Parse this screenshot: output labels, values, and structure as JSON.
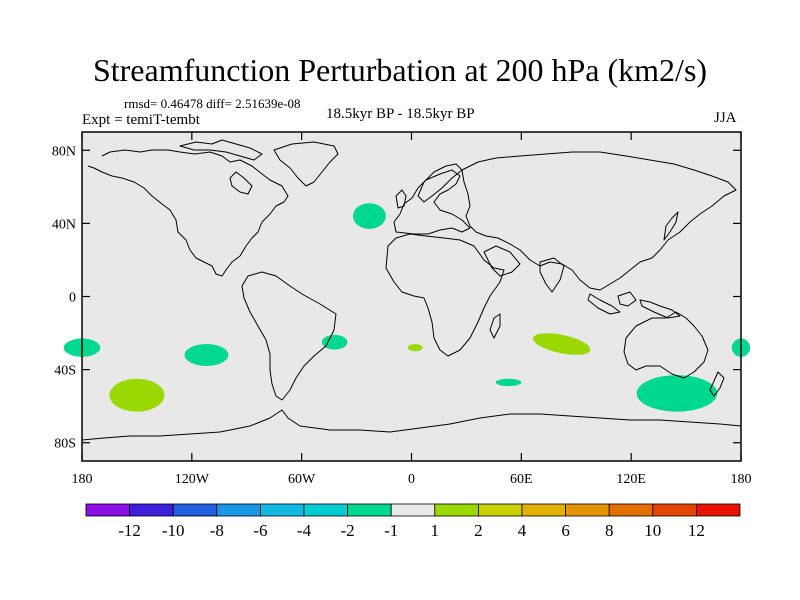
{
  "title": "Streamfunction Perturbation at 200 hPa (km2/s)",
  "stats_text": "rmsd= 0.46478  diff= 2.51639e-08",
  "experiment_label": "Expt = temiT-tembt",
  "period_label": "18.5kyr BP - 18.5kyr BP",
  "season_label": "JJA",
  "map": {
    "projection": "cylindrical equidistant",
    "lon_range": [
      -180,
      180
    ],
    "lat_range": [
      -90,
      90
    ],
    "ocean_land_fill": "#e8e8e8",
    "coastline_color": "#000000",
    "y_ticks": [
      {
        "label": "80N",
        "lat": 80
      },
      {
        "label": "40N",
        "lat": 40
      },
      {
        "label": "0",
        "lat": 0
      },
      {
        "label": "40S",
        "lat": -40
      },
      {
        "label": "80S",
        "lat": -80
      }
    ],
    "x_ticks": [
      {
        "label": "180",
        "lon": -180
      },
      {
        "label": "120W",
        "lon": -120
      },
      {
        "label": "60W",
        "lon": -60
      },
      {
        "label": "0",
        "lon": 0
      },
      {
        "label": "60E",
        "lon": 60
      },
      {
        "label": "120E",
        "lon": 120
      },
      {
        "label": "180",
        "lon": 180
      }
    ],
    "anomalies": [
      {
        "lon": -180,
        "lat": -28,
        "rlon": 10,
        "rlat": 5,
        "color": "#00d890"
      },
      {
        "lon": 180,
        "lat": -28,
        "rlon": 5,
        "rlat": 5,
        "color": "#00d890"
      },
      {
        "lon": -150,
        "lat": -54,
        "rlon": 15,
        "rlat": 9,
        "color": "#99d900"
      },
      {
        "lon": -112,
        "lat": -32,
        "rlon": 12,
        "rlat": 6,
        "color": "#00d890"
      },
      {
        "lon": -42,
        "lat": -25,
        "rlon": 7,
        "rlat": 4,
        "color": "#00d890"
      },
      {
        "lon": -23,
        "lat": 44,
        "rlon": 9,
        "rlat": 7,
        "color": "#00d890"
      },
      {
        "lon": 2,
        "lat": -28,
        "rlon": 4,
        "rlat": 2,
        "color": "#99d900"
      },
      {
        "lon": 53,
        "lat": -47,
        "rlon": 7,
        "rlat": 2,
        "color": "#00d890"
      },
      {
        "lon": 82,
        "lat": -26,
        "rlon": 16,
        "rlat": 5,
        "color": "#99d900",
        "rotate": 12
      },
      {
        "lon": 145,
        "lat": -53,
        "rlon": 22,
        "rlat": 10,
        "color": "#00d890"
      }
    ]
  },
  "colorbar": {
    "colors": [
      "#8a0ee6",
      "#3d1fdc",
      "#1f5fe0",
      "#1a96e6",
      "#11b9e3",
      "#00cdd2",
      "#00d890",
      "#e8e8e8",
      "#99d900",
      "#c8d000",
      "#e3b200",
      "#e59500",
      "#e36f00",
      "#e54500",
      "#e81000"
    ],
    "labels": [
      "-12",
      "-10",
      "-8",
      "-6",
      "-4",
      "-2",
      "-1",
      "1",
      "2",
      "4",
      "6",
      "8",
      "10",
      "12"
    ]
  }
}
